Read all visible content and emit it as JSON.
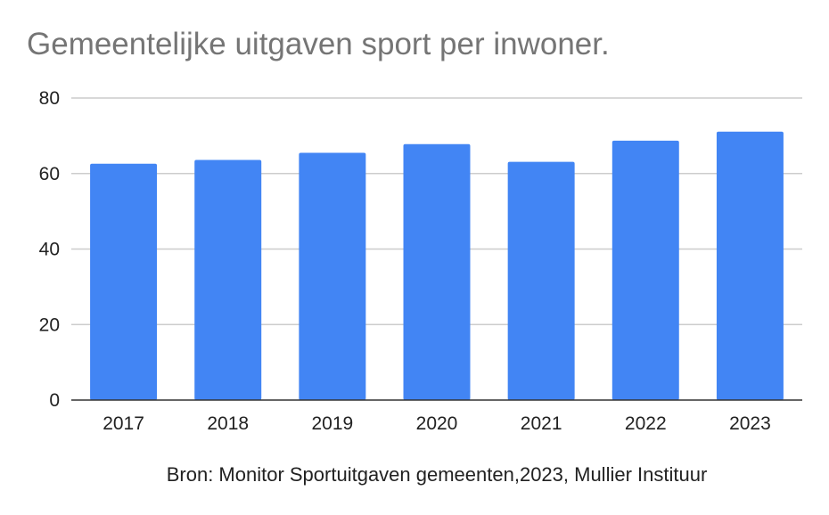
{
  "chart_data": {
    "type": "bar",
    "title": "Gemeentelijke uitgaven sport per inwoner.",
    "subtitle": "Bron: Monitor Sportuitgaven gemeenten,2023, Mullier Instituur",
    "xlabel": "",
    "ylabel": "",
    "categories": [
      "2017",
      "2018",
      "2019",
      "2020",
      "2021",
      "2022",
      "2023"
    ],
    "values": [
      62.6,
      63.6,
      65.5,
      67.8,
      63.1,
      68.7,
      71.1
    ],
    "ylim": [
      0,
      80
    ],
    "yticks": [
      "0",
      "20",
      "40",
      "60",
      "80"
    ],
    "grid": true,
    "legend": "none",
    "bar_color": "#4285f4",
    "grid_color": "#cccccc",
    "axis_color": "#333333"
  }
}
